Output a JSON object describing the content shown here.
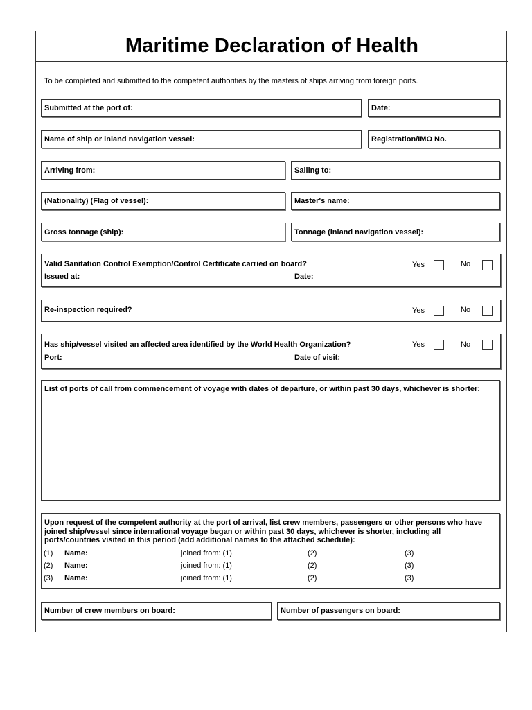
{
  "title": "Maritime Declaration of Health",
  "intro": "To be completed and submitted to the competent authorities by the masters of ships arriving from foreign ports.",
  "fields": {
    "submitted_port": "Submitted at the port of:",
    "date": "Date:",
    "ship_name": "Name of ship or inland navigation vessel:",
    "registration": "Registration/IMO No.",
    "arriving_from": "Arriving from:",
    "sailing_to": "Sailing to:",
    "nationality": "(Nationality) (Flag of vessel):",
    "master_name": "Master's name:",
    "gross_tonnage": "Gross tonnage (ship):",
    "tonnage_inland": "Tonnage (inland navigation vessel):"
  },
  "sanitation": {
    "question": "Valid Sanitation Control Exemption/Control Certificate carried on board?",
    "issued_at": "Issued at:",
    "date": "Date:",
    "yes": "Yes",
    "no": "No",
    "checked": null
  },
  "reinspection": {
    "question": "Re-inspection required?",
    "yes": "Yes",
    "no": "No",
    "checked": null
  },
  "affected_area": {
    "question": "Has ship/vessel visited an affected area identified by the World Health Organization?",
    "port": "Port:",
    "date_of_visit": "Date of visit:",
    "yes": "Yes",
    "no": "No",
    "checked": null
  },
  "ports_of_call": {
    "label": "List of ports of call from commencement of voyage with dates of departure, or within past 30 days, whichever is shorter:",
    "value": ""
  },
  "persons": {
    "label": "Upon request of the competent authority at the port of arrival, list crew members, passengers or other persons who have joined ship/vessel since international voyage began or within past 30 days, whichever is shorter, including all ports/countries visited in this period (add additional names to the attached schedule):",
    "rows": [
      {
        "num": "(1)",
        "name": "Name:",
        "joined": "joined from: (1)",
        "p2": "(2)",
        "p3": "(3)"
      },
      {
        "num": "(2)",
        "name": "Name:",
        "joined": "joined from: (1)",
        "p2": "(2)",
        "p3": "(3)"
      },
      {
        "num": "(3)",
        "name": "Name:",
        "joined": "joined from: (1)",
        "p2": "(2)",
        "p3": "(3)"
      }
    ]
  },
  "crew_count": "Number of crew members on board:",
  "passenger_count": "Number of passengers on board:"
}
